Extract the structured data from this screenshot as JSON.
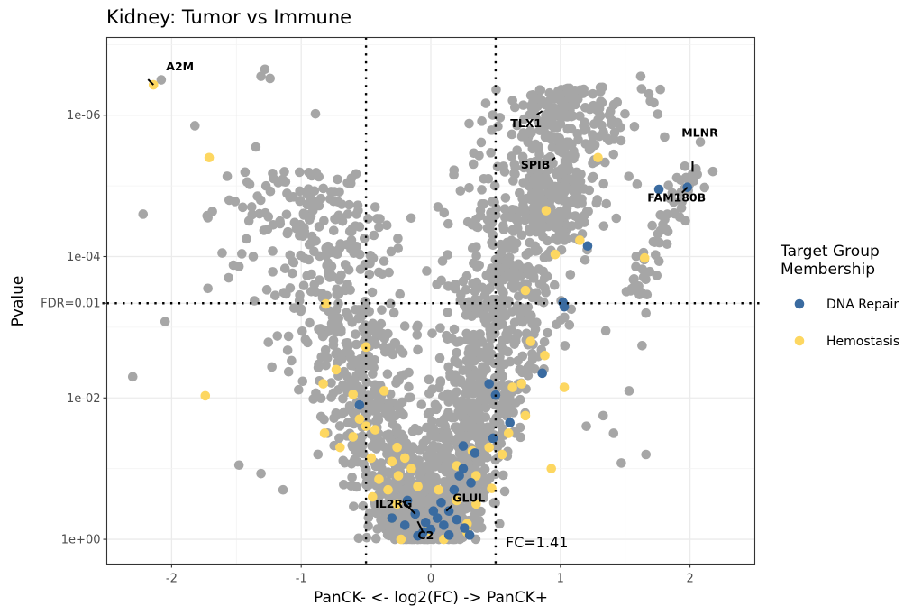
{
  "chart_data": {
    "type": "scatter",
    "title": "Kidney: Tumor vs Immune",
    "xlabel": "PanCK- <- log2(FC) -> PanCK+",
    "ylabel": "Pvalue",
    "x_range": [
      -2.5,
      2.5
    ],
    "y_scale": "-log10",
    "y_range_neglog10": [
      -0.35,
      7.1
    ],
    "x_ticks": [
      -2,
      -1,
      0,
      1,
      2
    ],
    "x_tick_labels": [
      "-2",
      "-1",
      "0",
      "1",
      "2"
    ],
    "y_ticks_neglog10": [
      0,
      2,
      3.34,
      4,
      6
    ],
    "y_tick_labels": [
      "1e+00",
      "1e-02",
      "FDR=0.01",
      "1e-04",
      "1e-06"
    ],
    "grid": true,
    "reference_lines": {
      "vertical_log2fc": [
        -0.5,
        0.5
      ],
      "horizontal_neglog10p": 3.34,
      "fc_annotation": "FC=1.41",
      "fdr_label": "FDR=0.01"
    },
    "legend": {
      "title": "Target Group Membership",
      "placement": "right",
      "entries": [
        {
          "name": "DNA Repair",
          "color": "#3A6BA0"
        },
        {
          "name": "Hemostasis",
          "color": "#FDD761"
        }
      ]
    },
    "colors": {
      "background_points": "#A6A6A6",
      "DNA Repair": "#3A6BA0",
      "Hemostasis": "#FDD761"
    },
    "labeled_genes": [
      {
        "gene": "A2M",
        "x": -2.14,
        "y": 6.43,
        "group": "Hemostasis"
      },
      {
        "gene": "TLX1",
        "x": 0.86,
        "y": 6.06,
        "group": "Other"
      },
      {
        "gene": "SPIB",
        "x": 0.96,
        "y": 5.4,
        "group": "Other"
      },
      {
        "gene": "MLNR",
        "x": 2.02,
        "y": 5.2,
        "group": "Other"
      },
      {
        "gene": "FAM180B",
        "x": 1.98,
        "y": 4.98,
        "group": "DNA Repair"
      },
      {
        "gene": "IL2RG",
        "x": -0.12,
        "y": 0.36,
        "group": "DNA Repair"
      },
      {
        "gene": "C2",
        "x": -0.06,
        "y": 0.1,
        "group": "DNA Repair"
      },
      {
        "gene": "GLUL",
        "x": 0.12,
        "y": 0.4,
        "group": "DNA Repair"
      }
    ],
    "dna_repair_points": [
      [
        1.76,
        4.95
      ],
      [
        1.98,
        4.98
      ],
      [
        1.21,
        4.15
      ],
      [
        1.02,
        3.35
      ],
      [
        1.03,
        3.29
      ],
      [
        0.86,
        2.35
      ],
      [
        0.45,
        2.2
      ],
      [
        0.5,
        2.04
      ],
      [
        0.61,
        1.65
      ],
      [
        0.48,
        1.43
      ],
      [
        -0.55,
        1.9
      ],
      [
        0.25,
        1.32
      ],
      [
        0.34,
        1.22
      ],
      [
        0.25,
        1.0
      ],
      [
        0.22,
        0.9
      ],
      [
        0.31,
        0.8
      ],
      [
        0.18,
        0.7
      ],
      [
        0.08,
        0.52
      ],
      [
        0.14,
        0.4
      ],
      [
        0.05,
        0.3
      ],
      [
        -0.12,
        0.36
      ],
      [
        -0.06,
        0.1
      ],
      [
        0.1,
        0.2
      ],
      [
        0.2,
        0.28
      ],
      [
        0.26,
        0.16
      ],
      [
        -0.04,
        0.24
      ],
      [
        -0.3,
        0.3
      ],
      [
        -0.2,
        0.2
      ],
      [
        0.0,
        0.14
      ],
      [
        0.14,
        0.06
      ],
      [
        -0.1,
        0.05
      ],
      [
        0.3,
        0.06
      ],
      [
        0.02,
        0.4
      ],
      [
        -0.18,
        0.55
      ]
    ],
    "hemostasis_points": [
      [
        -2.14,
        6.43
      ],
      [
        -1.71,
        5.4
      ],
      [
        -1.74,
        2.03
      ],
      [
        -0.81,
        3.33
      ],
      [
        -0.5,
        2.72
      ],
      [
        -0.73,
        2.4
      ],
      [
        -0.6,
        2.05
      ],
      [
        -0.83,
        2.2
      ],
      [
        -0.36,
        2.1
      ],
      [
        -0.55,
        1.7
      ],
      [
        -0.5,
        1.6
      ],
      [
        -0.6,
        1.45
      ],
      [
        -0.43,
        1.55
      ],
      [
        -0.46,
        1.15
      ],
      [
        -0.82,
        1.5
      ],
      [
        -0.7,
        1.3
      ],
      [
        -0.26,
        1.3
      ],
      [
        -0.2,
        1.15
      ],
      [
        -0.3,
        1.1
      ],
      [
        -0.4,
        0.85
      ],
      [
        -0.33,
        0.7
      ],
      [
        -0.25,
        0.9
      ],
      [
        -0.15,
        1.0
      ],
      [
        -0.45,
        0.6
      ],
      [
        -0.1,
        0.75
      ],
      [
        -0.26,
        0.5
      ],
      [
        -0.3,
        0.3
      ],
      [
        -0.23,
        0.0
      ],
      [
        -0.02,
        0.12
      ],
      [
        0.1,
        0.0
      ],
      [
        0.2,
        0.55
      ],
      [
        0.35,
        0.5
      ],
      [
        0.28,
        0.22
      ],
      [
        0.06,
        0.7
      ],
      [
        0.2,
        1.04
      ],
      [
        0.35,
        0.9
      ],
      [
        0.32,
        1.25
      ],
      [
        0.47,
        0.72
      ],
      [
        0.55,
        1.2
      ],
      [
        0.6,
        1.5
      ],
      [
        0.73,
        1.75
      ],
      [
        0.88,
        2.6
      ],
      [
        0.77,
        2.8
      ],
      [
        0.63,
        2.15
      ],
      [
        1.03,
        2.15
      ],
      [
        0.93,
        1.0
      ],
      [
        1.29,
        5.4
      ],
      [
        1.65,
        3.98
      ],
      [
        0.73,
        3.52
      ],
      [
        0.96,
        4.03
      ],
      [
        1.15,
        4.23
      ],
      [
        0.89,
        4.65
      ],
      [
        0.7,
        2.2
      ],
      [
        0.45,
        1.3
      ],
      [
        0.28,
        0.1
      ]
    ],
    "other_notable_points": [
      [
        -2.08,
        6.5
      ],
      [
        -1.28,
        6.65
      ],
      [
        -1.31,
        6.55
      ],
      [
        -1.24,
        6.52
      ],
      [
        -1.82,
        5.85
      ],
      [
        -0.89,
        6.02
      ],
      [
        -1.35,
        5.55
      ],
      [
        -2.22,
        4.6
      ],
      [
        -1.13,
        5.2
      ],
      [
        -2.05,
        3.08
      ],
      [
        -1.72,
        4.55
      ],
      [
        -2.3,
        2.3
      ],
      [
        -1.56,
        3.7
      ],
      [
        -1.48,
        3.86
      ],
      [
        -1.61,
        4.05
      ],
      [
        -1.72,
        3.55
      ],
      [
        -1.48,
        1.05
      ],
      [
        -1.31,
        0.93
      ],
      [
        -1.14,
        0.7
      ],
      [
        1.62,
        6.55
      ],
      [
        1.25,
        6.3
      ],
      [
        1.3,
        5.7
      ],
      [
        2.08,
        5.62
      ],
      [
        1.35,
        2.95
      ],
      [
        1.33,
        1.75
      ],
      [
        1.41,
        1.5
      ],
      [
        1.66,
        1.2
      ],
      [
        1.47,
        1.08
      ],
      [
        1.53,
        2.1
      ],
      [
        1.63,
        2.74
      ],
      [
        1.66,
        3.2
      ],
      [
        1.2,
        1.6
      ]
    ]
  }
}
